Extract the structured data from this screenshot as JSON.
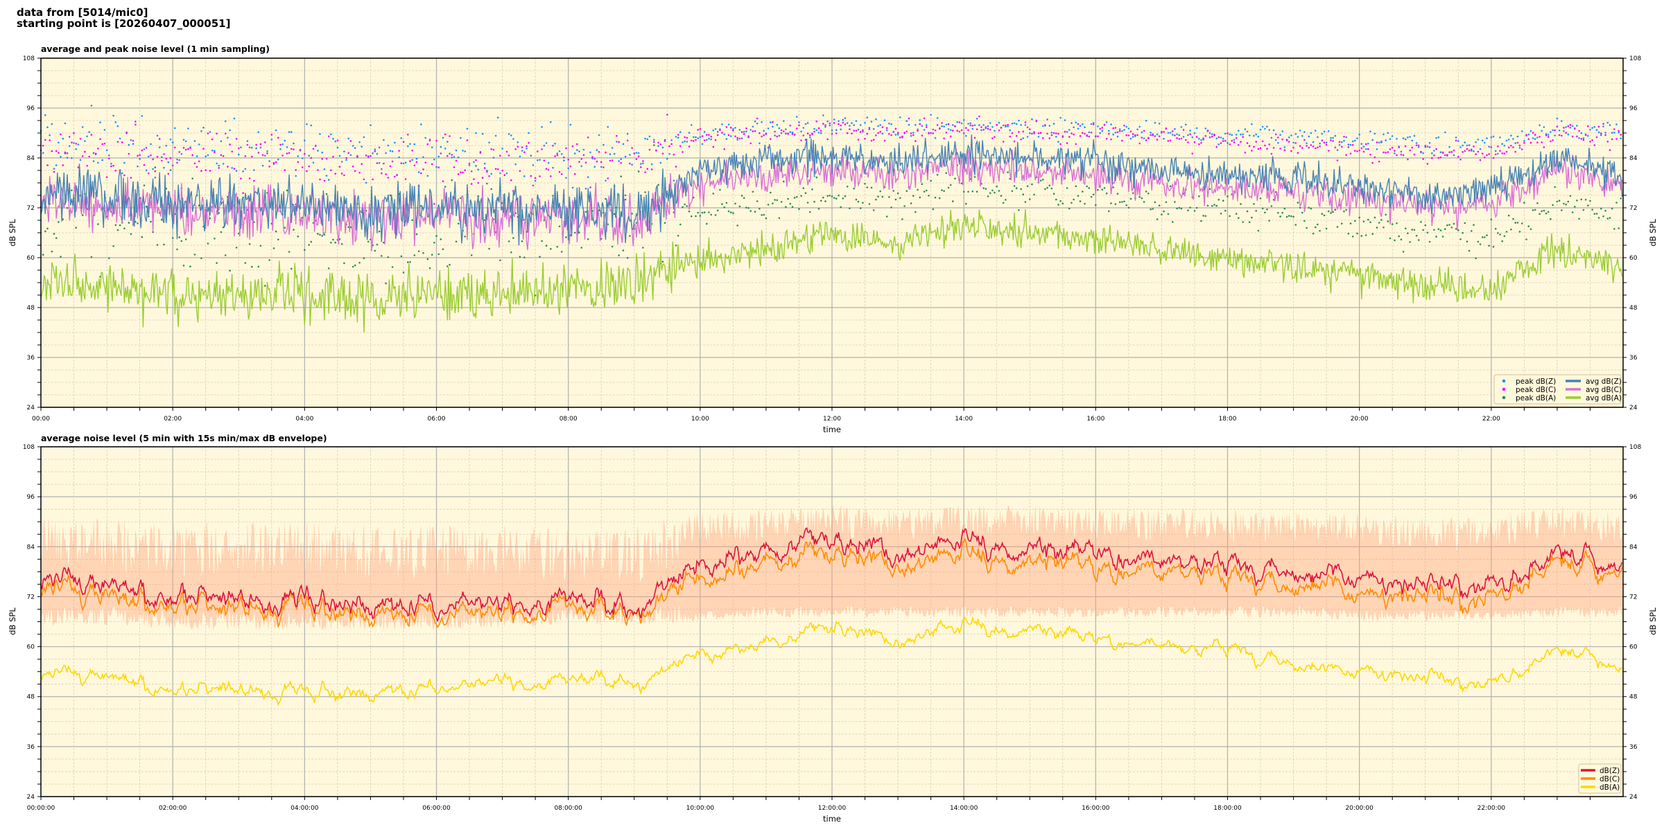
{
  "header": {
    "line1": "data from [5014/mic0]",
    "line2": "starting point is [20260407_000051]"
  },
  "colors": {
    "background": "#fff8dc",
    "peak_z": "#1e90ff",
    "peak_c": "#ff00ff",
    "peak_a": "#2e8b57",
    "avg_z": "#4682b4",
    "avg_c": "#da70d6",
    "avg_a": "#9acd32",
    "db_z": "#dc143c",
    "db_c": "#ff8c00",
    "db_a": "#ffd700",
    "envelope": "#ffa07a"
  },
  "chart_data": [
    {
      "type": "line",
      "title": "average and peak noise level (1 min sampling)",
      "xlabel": "time",
      "ylabel": "dB SPL",
      "xlim_hours": [
        0,
        24
      ],
      "ylim": [
        24,
        108
      ],
      "yticks": [
        108,
        96,
        84,
        72,
        60,
        48,
        36,
        24
      ],
      "xtick_labels": [
        "00:00",
        "02:00",
        "04:00",
        "06:00",
        "08:00",
        "10:00",
        "12:00",
        "14:00",
        "16:00",
        "18:00",
        "20:00",
        "22:00"
      ],
      "grid": true,
      "legend_position": "bottom-right",
      "hourly_x": [
        0,
        1,
        2,
        3,
        4,
        5,
        6,
        7,
        8,
        9,
        10,
        11,
        12,
        13,
        14,
        15,
        16,
        17,
        18,
        19,
        20,
        21,
        22,
        23,
        24
      ],
      "series": [
        {
          "name": "peak dB(Z)",
          "kind": "scatter",
          "color_key": "peak_z",
          "values": [
            87,
            87,
            86,
            86,
            85,
            85,
            85,
            85,
            85,
            84,
            90,
            91,
            92,
            91,
            92,
            91,
            91,
            90,
            90,
            89,
            88,
            87,
            87,
            91,
            90
          ]
        },
        {
          "name": "peak dB(C)",
          "kind": "scatter",
          "color_key": "peak_c",
          "values": [
            85,
            85,
            84,
            84,
            83,
            83,
            83,
            83,
            83,
            82,
            89,
            90,
            91,
            90,
            91,
            90,
            90,
            89,
            88,
            87,
            86,
            85,
            85,
            90,
            89
          ]
        },
        {
          "name": "peak dB(A)",
          "kind": "scatter",
          "color_key": "peak_a",
          "values": [
            70,
            68,
            67,
            66,
            66,
            65,
            66,
            67,
            68,
            69,
            72,
            73,
            75,
            74,
            77,
            76,
            75,
            73,
            72,
            70,
            68,
            66,
            65,
            73,
            71
          ]
        },
        {
          "name": "avg dB(Z)",
          "kind": "line",
          "color_key": "avg_z",
          "values": [
            76,
            75,
            73,
            73,
            72,
            71,
            72,
            72,
            72,
            70,
            81,
            83,
            84,
            83,
            85,
            84,
            83,
            81,
            80,
            79,
            77,
            75,
            76,
            84,
            80
          ]
        },
        {
          "name": "avg dB(C)",
          "kind": "line",
          "color_key": "avg_c",
          "values": [
            74,
            73,
            71,
            71,
            70,
            69,
            70,
            70,
            70,
            68,
            78,
            80,
            81,
            80,
            82,
            81,
            80,
            78,
            77,
            76,
            74,
            72,
            73,
            81,
            78
          ]
        },
        {
          "name": "avg dB(A)",
          "kind": "line",
          "color_key": "avg_a",
          "values": [
            55,
            53,
            52,
            51,
            51,
            50,
            51,
            52,
            53,
            54,
            60,
            62,
            66,
            63,
            68,
            66,
            65,
            62,
            60,
            58,
            56,
            53,
            52,
            62,
            58
          ]
        }
      ]
    },
    {
      "type": "line",
      "title": "average noise level (5 min with 15s min/max dB envelope)",
      "xlabel": "time",
      "ylabel": "dB SPL",
      "xlim_hours": [
        0,
        24
      ],
      "ylim": [
        24,
        108
      ],
      "yticks": [
        108,
        96,
        84,
        72,
        60,
        48,
        36,
        24
      ],
      "xtick_labels": [
        "00:00:00",
        "02:00:00",
        "04:00:00",
        "06:00:00",
        "08:00:00",
        "10:00:00",
        "12:00:00",
        "14:00:00",
        "16:00:00",
        "18:00:00",
        "20:00:00",
        "22:00:00"
      ],
      "grid": true,
      "legend_position": "bottom-right",
      "hourly_x": [
        0,
        1,
        2,
        3,
        4,
        5,
        6,
        7,
        8,
        9,
        10,
        11,
        12,
        13,
        14,
        15,
        16,
        17,
        18,
        19,
        20,
        21,
        22,
        23,
        24
      ],
      "envelope": {
        "min": [
          65,
          65,
          64,
          64,
          64,
          64,
          64,
          64,
          65,
          65,
          66,
          67,
          67,
          67,
          67,
          67,
          67,
          67,
          67,
          67,
          66,
          66,
          66,
          67,
          67
        ],
        "max": [
          91,
          91,
          90,
          90,
          90,
          89,
          89,
          89,
          89,
          89,
          92,
          93,
          94,
          93,
          94,
          94,
          93,
          93,
          93,
          92,
          92,
          91,
          91,
          94,
          92
        ]
      },
      "series": [
        {
          "name": "dB(Z)",
          "color_key": "db_z",
          "values": [
            76,
            74,
            72,
            72,
            71,
            70,
            70,
            70,
            71,
            70,
            79,
            82,
            86,
            82,
            85,
            83,
            82,
            80,
            80,
            78,
            76,
            74,
            74,
            84,
            78
          ]
        },
        {
          "name": "dB(C)",
          "color_key": "db_c",
          "values": [
            74,
            72,
            70,
            70,
            69,
            68,
            68,
            68,
            69,
            68,
            76,
            79,
            83,
            79,
            82,
            80,
            79,
            77,
            77,
            75,
            73,
            71,
            71,
            82,
            76
          ]
        },
        {
          "name": "dB(A)",
          "color_key": "db_a",
          "values": [
            54,
            52,
            50,
            50,
            49,
            49,
            50,
            51,
            52,
            52,
            58,
            60,
            65,
            61,
            65,
            64,
            62,
            60,
            59,
            56,
            54,
            52,
            51,
            60,
            54
          ]
        }
      ]
    }
  ]
}
